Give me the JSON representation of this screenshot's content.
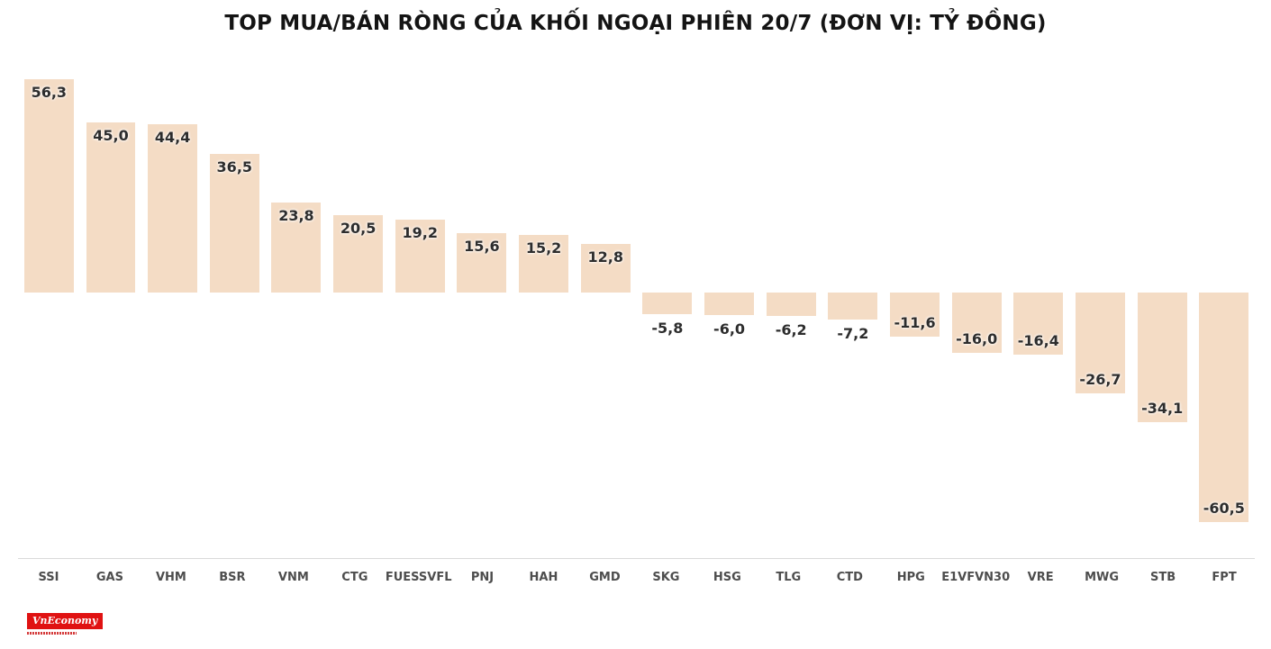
{
  "title": "TOP MUA/BÁN RÒNG CỦA KHỐI NGOẠI PHIÊN 20/7 (ĐƠN VỊ: TỶ ĐỒNG)",
  "logo": {
    "text": "VnEconomy"
  },
  "chart_data": {
    "type": "bar",
    "title": "TOP MUA/BÁN RÒNG CỦA KHỐI NGOẠI PHIÊN 20/7 (ĐƠN VỊ: TỶ ĐỒNG)",
    "categories": [
      "SSI",
      "GAS",
      "VHM",
      "BSR",
      "VNM",
      "CTG",
      "FUESSVFL",
      "PNJ",
      "HAH",
      "GMD",
      "SKG",
      "HSG",
      "TLG",
      "CTD",
      "HPG",
      "E1VFVN30",
      "VRE",
      "MWG",
      "STB",
      "FPT"
    ],
    "values": [
      56.3,
      45.0,
      44.4,
      36.5,
      23.8,
      20.5,
      19.2,
      15.6,
      15.2,
      12.8,
      -5.8,
      -6.0,
      -6.2,
      -7.2,
      -11.6,
      -16.0,
      -16.4,
      -26.7,
      -34.1,
      -60.5
    ],
    "labels": [
      "56,3",
      "45,0",
      "44,4",
      "36,5",
      "23,8",
      "20,5",
      "19,2",
      "15,6",
      "15,2",
      "12,8",
      "-5,8",
      "-6,0",
      "-6,2",
      "-7,2",
      "-11,6",
      "-16,0",
      "-16,4",
      "-26,7",
      "-34,1",
      "-60,5"
    ],
    "xlabel": "",
    "ylabel": "tỷ đồng",
    "ylim": [
      -65,
      60
    ],
    "grid": false,
    "legend": false,
    "bar_color": "#f4dcc5",
    "label_color": "#2d2d2d",
    "tick_color": "#4d4d4d",
    "axis_line_color": "#d9d9d9"
  }
}
